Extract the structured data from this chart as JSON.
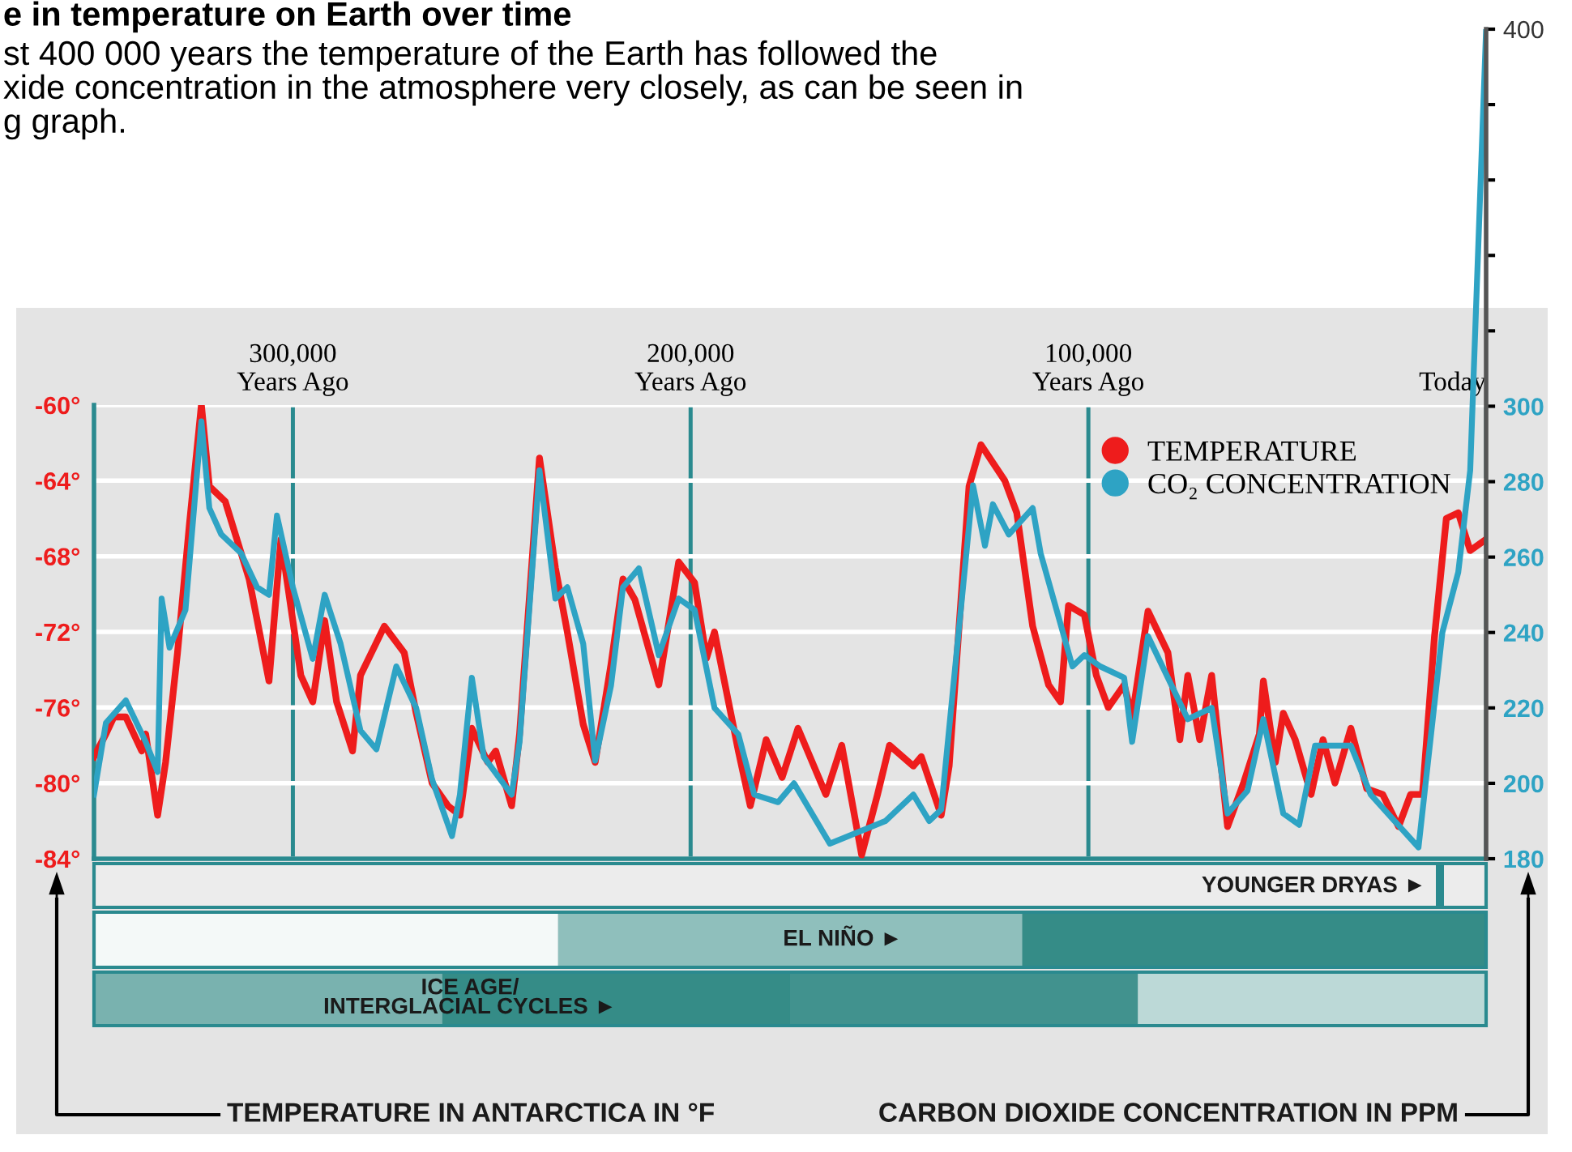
{
  "chart_data": {
    "type": "line",
    "title": "e in temperature on Earth over time",
    "subtitle": "st 400 000 years the temperature of the Earth has followed the\nxide concentration in the atmosphere very closely, as can be seen in\ng graph.",
    "xlim": [
      350000,
      0
    ],
    "xticks": [
      {
        "value": 300000,
        "label": "300,000\nYears Ago"
      },
      {
        "value": 200000,
        "label": "200,000\nYears Ago"
      },
      {
        "value": 100000,
        "label": "100,000\nYears Ago"
      },
      {
        "value": 0,
        "label": "Today"
      }
    ],
    "ylim": [
      -84,
      -60
    ],
    "yticks": [
      {
        "value": -84,
        "label": "-84°"
      },
      {
        "value": -80,
        "label": "-80°"
      },
      {
        "value": -76,
        "label": "-76°"
      },
      {
        "value": -72,
        "label": "-72°"
      },
      {
        "value": -68,
        "label": "-68°"
      },
      {
        "value": -64,
        "label": "-64°"
      },
      {
        "value": -60,
        "label": "-60°"
      }
    ],
    "y2lim": [
      180,
      400
    ],
    "y2ticks": [
      180,
      200,
      220,
      240,
      260,
      280,
      300,
      {
        "value": 320,
        "label": null
      },
      {
        "value": 340,
        "label": null
      },
      {
        "value": 360,
        "label": null
      },
      {
        "value": 380,
        "label": null
      },
      400
    ],
    "grid": true,
    "legend": "top right",
    "marker": "none",
    "line_style": "solid",
    "annotations": [
      "YOUNGER DRYAS ►",
      "EL NIÑO ►",
      "ICE AGE/\nINTERGLACIAL CYCLES ►",
      "TEMPERATURE IN ANTARCTICA IN °F",
      "CARBON DIOXIDE CONCENTRATION IN PPM"
    ],
    "series": [
      {
        "name": "TEMPERATURE",
        "color": "#ee1c1c",
        "x": [
          350000,
          347000,
          345000,
          342000,
          338000,
          337000,
          334000,
          332000,
          329000,
          326000,
          323000,
          321000,
          317000,
          311000,
          306000,
          303000,
          298000,
          295000,
          292000,
          289000,
          285000,
          283000,
          277000,
          272000,
          269000,
          265000,
          261000,
          258000,
          255000,
          251000,
          249000,
          245000,
          243000,
          238000,
          234000,
          231000,
          227000,
          224000,
          220000,
          217000,
          214000,
          208000,
          203000,
          199000,
          196000,
          194000,
          188000,
          185000,
          181000,
          177000,
          173000,
          170000,
          166000,
          162000,
          157000,
          153000,
          150000,
          144000,
          142000,
          137000,
          135000,
          130000,
          127000,
          121000,
          118000,
          114000,
          110000,
          107000,
          105000,
          101000,
          98000,
          95000,
          91000,
          89000,
          85000,
          80000,
          77000,
          75000,
          72000,
          69000,
          65000,
          61000,
          57000,
          56000,
          53000,
          51000,
          48000,
          44000,
          41000,
          38000,
          34000,
          30000,
          26000,
          22000,
          19000,
          16000,
          13000,
          10000,
          7000,
          4000,
          0
        ],
        "values": [
          -78.6,
          -77.4,
          -76.5,
          -76.5,
          -78.3,
          -77.4,
          -81.7,
          -78.9,
          -73.1,
          -66.3,
          -60.0,
          -64.3,
          -65.1,
          -69.2,
          -74.6,
          -67.1,
          -74.3,
          -75.7,
          -71.4,
          -75.7,
          -78.3,
          -74.3,
          -71.7,
          -73.1,
          -76.3,
          -80.0,
          -81.2,
          -81.7,
          -77.1,
          -78.9,
          -78.3,
          -81.2,
          -77.4,
          -62.8,
          -68.6,
          -72.0,
          -76.9,
          -78.9,
          -73.7,
          -69.2,
          -70.3,
          -74.8,
          -68.3,
          -69.4,
          -73.4,
          -72.0,
          -78.3,
          -81.2,
          -77.7,
          -79.7,
          -77.1,
          -78.6,
          -80.6,
          -78.0,
          -83.8,
          -80.6,
          -78.0,
          -79.1,
          -78.6,
          -81.7,
          -79.1,
          -64.3,
          -62.1,
          -64.0,
          -65.7,
          -71.7,
          -74.8,
          -75.7,
          -70.6,
          -71.1,
          -74.3,
          -76.0,
          -74.8,
          -76.5,
          -70.9,
          -73.1,
          -77.7,
          -74.3,
          -77.7,
          -74.3,
          -82.3,
          -80.0,
          -77.4,
          -74.6,
          -78.9,
          -76.3,
          -77.7,
          -80.6,
          -77.7,
          -80.0,
          -77.1,
          -80.3,
          -80.6,
          -82.3,
          -80.6,
          -80.6,
          -72.3,
          -66.0,
          -65.7,
          -67.7,
          -67.1
        ]
      },
      {
        "name": "CO₂ CONCENTRATION",
        "color": "#2ea3c4",
        "axis": "y2",
        "x": [
          350000,
          347000,
          342000,
          337000,
          334000,
          333000,
          331000,
          327000,
          323000,
          321000,
          318000,
          313000,
          309000,
          306000,
          304000,
          300000,
          295000,
          292000,
          288000,
          283000,
          279000,
          274000,
          269000,
          265000,
          260000,
          258000,
          255000,
          252000,
          245000,
          243000,
          238000,
          234000,
          231000,
          227000,
          224000,
          220000,
          217000,
          213000,
          208000,
          203000,
          199000,
          194000,
          188000,
          184000,
          178000,
          174000,
          165000,
          158000,
          151000,
          144000,
          140000,
          137000,
          129000,
          126000,
          124000,
          120000,
          114000,
          112000,
          108000,
          104000,
          101000,
          97000,
          91000,
          89000,
          85000,
          80000,
          75000,
          69000,
          65000,
          60000,
          56000,
          51000,
          47000,
          43000,
          34000,
          29000,
          23000,
          17000,
          11000,
          7000,
          4000,
          0
        ],
        "values": [
          197,
          216,
          222,
          211,
          203,
          249,
          236,
          246,
          296,
          273,
          266,
          261,
          252,
          250,
          271,
          252,
          233,
          250,
          237,
          214,
          209,
          231,
          220,
          201,
          186,
          197,
          228,
          207,
          197,
          211,
          283,
          249,
          252,
          237,
          206,
          226,
          252,
          257,
          234,
          249,
          246,
          220,
          213,
          197,
          195,
          200,
          184,
          187,
          190,
          197,
          190,
          193,
          279,
          263,
          274,
          266,
          273,
          261,
          246,
          231,
          234,
          231,
          228,
          211,
          239,
          228,
          217,
          220,
          192,
          198,
          217,
          192,
          189,
          210,
          210,
          197,
          190,
          183,
          240,
          256,
          283,
          400
        ]
      }
    ]
  }
}
